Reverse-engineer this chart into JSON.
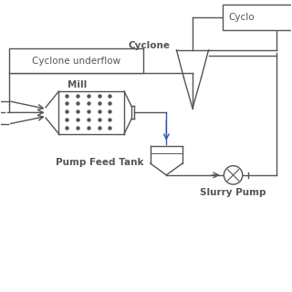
{
  "bg_color": "#ffffff",
  "line_color": "#555555",
  "blue_color": "#3355bb",
  "labels": {
    "cyclone_label": "Cyclone",
    "cyclone_underflow": "Cyclone underflow",
    "mill": "Mill",
    "pump_feed_tank": "Pump Feed Tank",
    "slurry_pump": "Slurry Pump",
    "cyclone_box": "Cyclo"
  },
  "xlim": [
    0,
    10
  ],
  "ylim": [
    0,
    10
  ]
}
